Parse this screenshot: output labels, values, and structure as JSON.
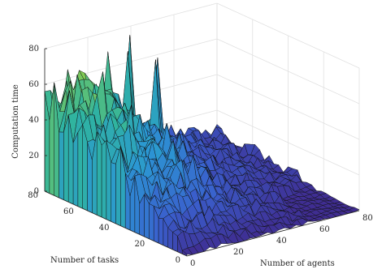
{
  "chart_data": {
    "type": "surface",
    "title": "",
    "xlabel": "Number of agents",
    "ylabel": "Number of tasks",
    "zlabel": "Computation time",
    "xlim": [
      0,
      80
    ],
    "ylim": [
      0,
      80
    ],
    "zlim": [
      0,
      80
    ],
    "x_ticks": [
      "0",
      "20",
      "40",
      "60",
      "80"
    ],
    "y_ticks": [
      "0",
      "20",
      "40",
      "60",
      "80"
    ],
    "z_ticks": [
      "0",
      "20",
      "40",
      "60",
      "80"
    ],
    "grid": true,
    "colormap": [
      "#3f2b8f",
      "#3a5fcd",
      "#2b97d3",
      "#2fb4a0",
      "#8ccd4a",
      "#e6e03a"
    ],
    "z_max_peak": 77,
    "z_at_low_agents_high_tasks": 45,
    "z_at_high_agents_low_tasks": 0
  }
}
